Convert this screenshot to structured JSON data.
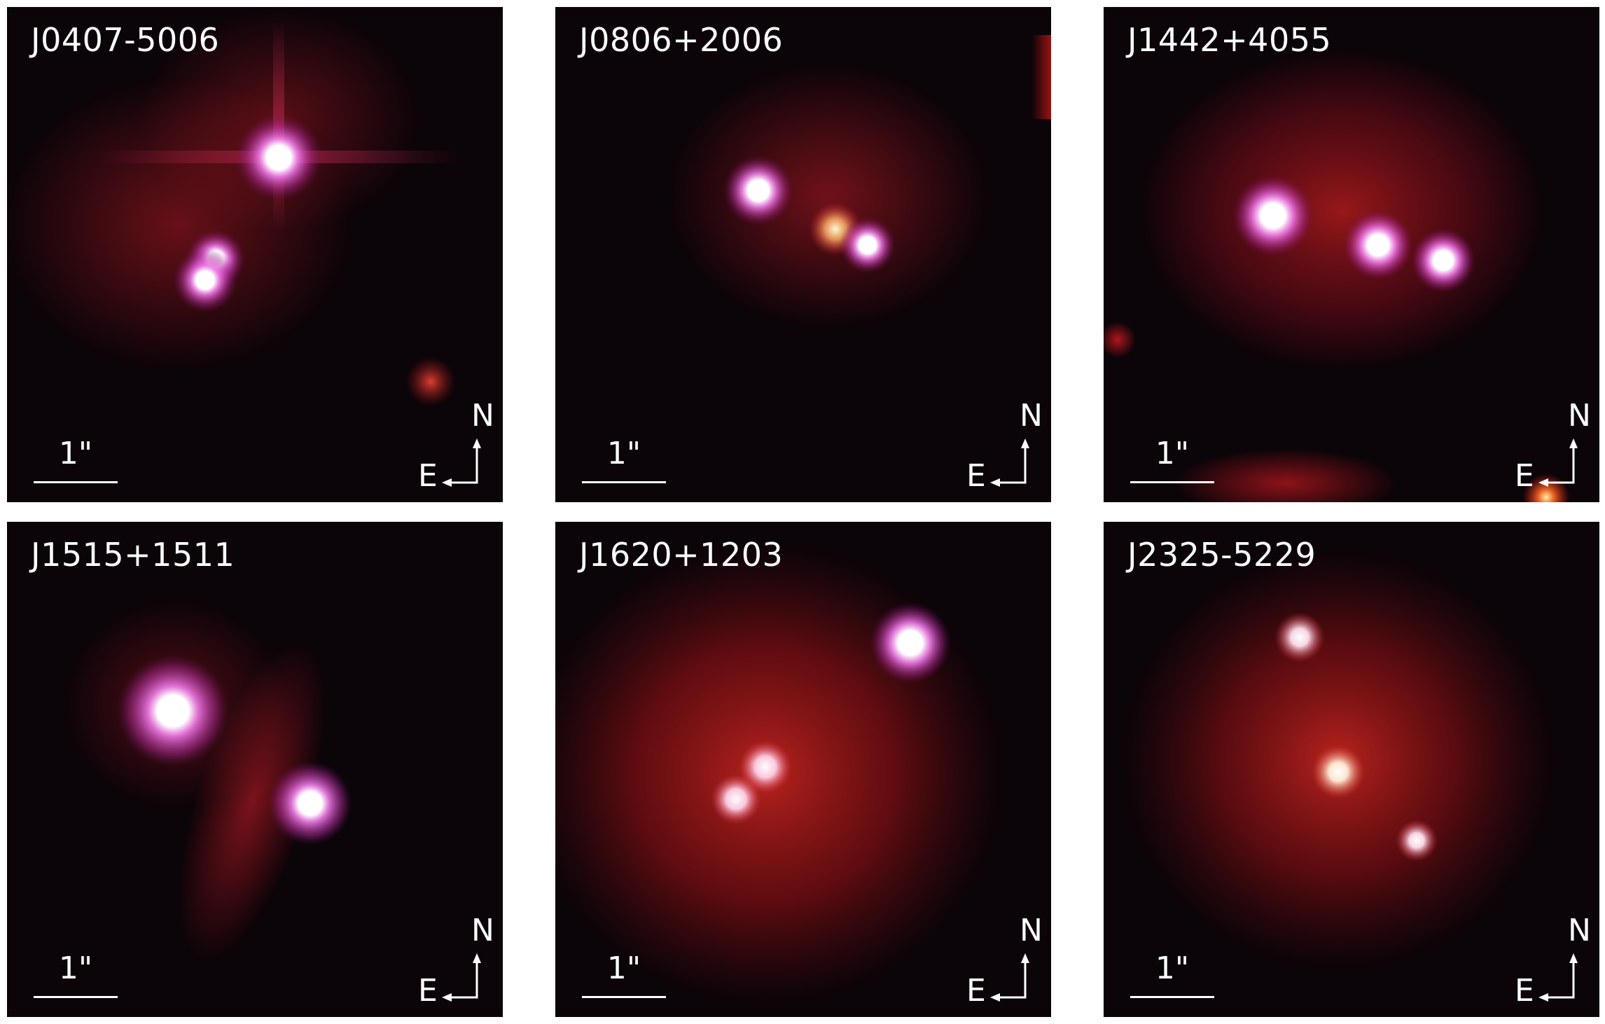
{
  "figure": {
    "panels": [
      {
        "label": "J0407-5006"
      },
      {
        "label": "J0806+2006"
      },
      {
        "label": "J1442+4055"
      },
      {
        "label": "J1515+1511"
      },
      {
        "label": "J1620+1203"
      },
      {
        "label": "J2325-5229"
      }
    ],
    "scale_bar_label": "1\"",
    "compass": {
      "north": "N",
      "east": "E"
    }
  },
  "colors": {
    "background": "#0b0408",
    "glow": "#d8201f",
    "point_source_core": "#ffffff",
    "point_source_halo": "#d84fd0",
    "annotation": "#ffffff"
  }
}
